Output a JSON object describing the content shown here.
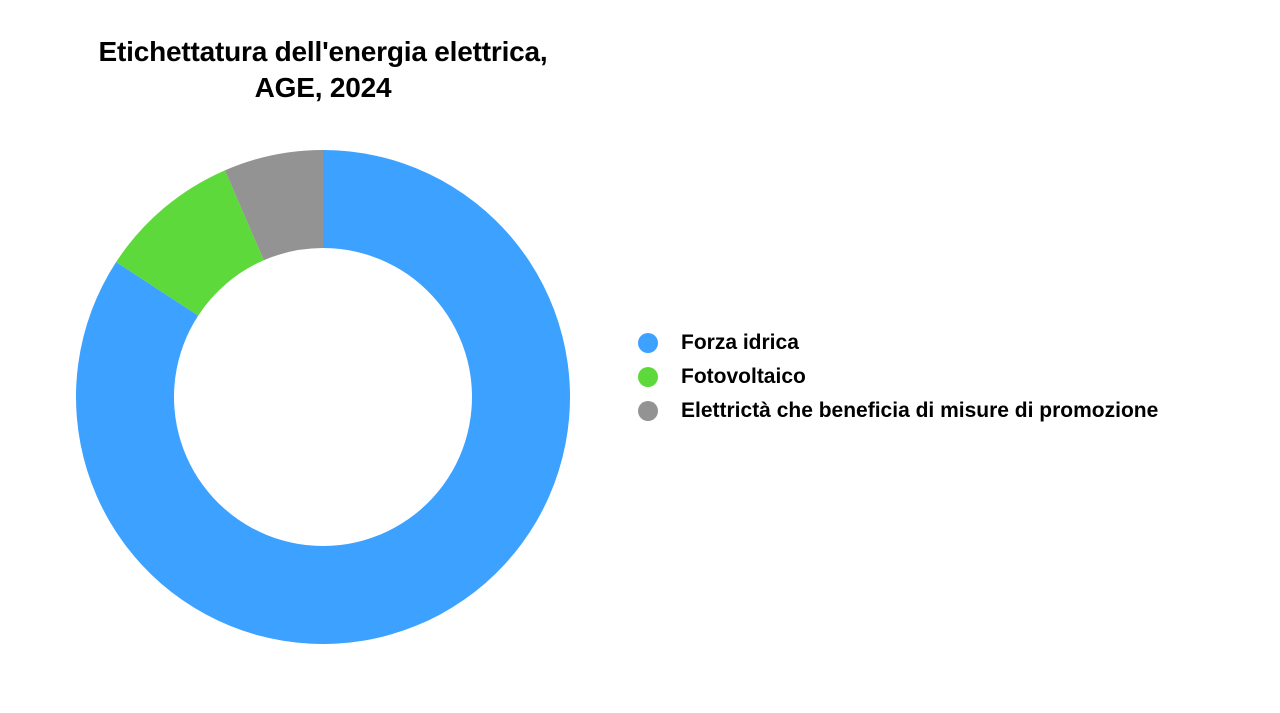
{
  "title": {
    "line1": "Etichettatura dell'energia elettrica,",
    "line2": "AGE, 2024"
  },
  "chart_data": {
    "type": "pie",
    "variant": "donut",
    "title": "Etichettatura dell'energia elettrica, AGE, 2024",
    "legend_position": "right",
    "slices": [
      {
        "label": "Forza idrica",
        "value": 84.2,
        "color": "#3ca1ff"
      },
      {
        "label": "Fotovoltaico",
        "value": 9.3,
        "color": "#5dd93b"
      },
      {
        "label": "Elettrictà che beneficia di misure di promozione",
        "value": 6.5,
        "color": "#939393"
      }
    ]
  }
}
